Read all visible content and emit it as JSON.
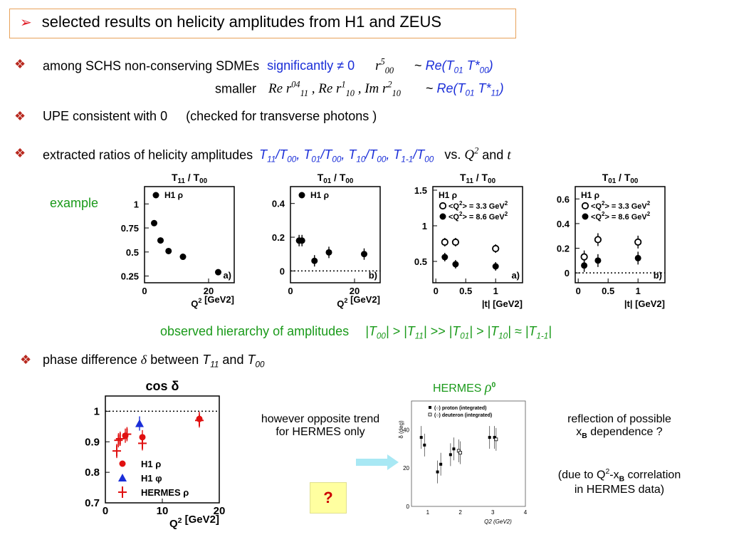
{
  "title": {
    "arrow": "➢",
    "text": "selected results on helicity amplitudes from H1 and ZEUS"
  },
  "bullets": {
    "b1": {
      "text_a": "among SCHS non-conserving SDMEs",
      "text_b": "significantly ≠ 0",
      "r_main": "r",
      "r_sup": "5",
      "r_sub": "00",
      "tilde": "~",
      "re_label": "Re(T",
      "t01": "01",
      "tstar": " T*",
      "t00": "00",
      "close": ")"
    },
    "b1b": {
      "smaller": "smaller",
      "re1": "Re r",
      "re1_sup": "04",
      "re1_sub": "11",
      "sep1": ",",
      "re2": "Re r",
      "re2_sup": "1",
      "re2_sub": "10",
      "sep2": ",",
      "im": "Im r",
      "im_sup": "2",
      "im_sub": "10",
      "tilde": "~",
      "re_label": "Re(T",
      "t01": "01",
      "tstar": " T*",
      "t11": "11",
      "close": ")"
    },
    "b2": {
      "text": "UPE consistent with 0",
      "paren": "(checked for transverse photons )"
    },
    "b3": {
      "text": "extracted ratios of helicity amplitudes",
      "vs": "vs.",
      "q": "Q",
      "q_sup": "2",
      "and": "and",
      "t": "t"
    },
    "b4": {
      "text": "phase  difference",
      "delta": "δ",
      "between": "between",
      "and": "and"
    },
    "bullet_symbol": "❖"
  },
  "example_label": "example",
  "hierarchy": {
    "label": "observed hierarchy of amplitudes",
    "expr": "|T00| > |T11| >> |T01| > |T10| ≈ |T1-1|"
  },
  "notes": {
    "trend_1": "however opposite trend",
    "trend_2": "for HERMES only",
    "refl_1": "reflection of possible",
    "refl_2": "x",
    "refl_2_sub": "B",
    "refl_2_b": " dependence  ?",
    "due_1": "(due to Q",
    "due_1_sup": "2",
    "due_1_b": "-x",
    "due_1_sub": "B",
    "due_1_c": " correlation",
    "due_2": "in  HERMES data)",
    "question": "?"
  },
  "hermes_label": {
    "text": "HERMES",
    "rho": "ρ",
    "rho_sup": "0"
  },
  "colors": {
    "title_border": "#e8a25a",
    "bullet": "#b8281e",
    "blue": "#1a2ed8",
    "green": "#1a9a1a",
    "red": "#e01010",
    "arrow_fill": "#a8e8f4"
  },
  "chart_data": [
    {
      "type": "scatter",
      "title": "T11 / T00",
      "xlabel": "Q2 [GeV2]",
      "ylabel": "",
      "panel": "a)",
      "xlim": [
        0,
        28
      ],
      "ylim": [
        0.18,
        1.18
      ],
      "xticks": [
        0,
        20
      ],
      "yticks": [
        0.25,
        0.5,
        0.75,
        1
      ],
      "series": [
        {
          "name": "H1 ρ",
          "marker": "filled-circle",
          "points": [
            [
              3,
              0.8
            ],
            [
              5,
              0.62
            ],
            [
              7.5,
              0.51
            ],
            [
              12,
              0.45
            ],
            [
              23,
              0.29
            ]
          ]
        }
      ]
    },
    {
      "type": "scatter",
      "title": "T01 / T00",
      "xlabel": "Q2 [GeV2]",
      "ylabel": "",
      "panel": "b)",
      "xlim": [
        0,
        28
      ],
      "ylim": [
        -0.07,
        0.5
      ],
      "xticks": [
        0,
        20
      ],
      "yticks": [
        0,
        0.2,
        0.4
      ],
      "dotted_line": 0,
      "series": [
        {
          "name": "H1 ρ",
          "marker": "filled-circle",
          "points": [
            [
              2.7,
              0.18
            ],
            [
              3.6,
              0.18
            ],
            [
              7.5,
              0.06
            ],
            [
              12,
              0.11
            ],
            [
              23,
              0.1
            ]
          ]
        }
      ]
    },
    {
      "type": "scatter",
      "title": "T11 / T00",
      "xlabel": "|t| [GeV2]",
      "ylabel": "",
      "panel": "a)",
      "xlim": [
        -0.05,
        1.45
      ],
      "ylim": [
        0.2,
        1.55
      ],
      "xticks": [
        0,
        0.5,
        1
      ],
      "yticks": [
        0.5,
        1,
        1.5
      ],
      "series_header": "H1 ρ",
      "series": [
        {
          "name": "<Q2> = 3.3 GeV2",
          "marker": "open-circle",
          "points": [
            [
              0.15,
              0.77
            ],
            [
              0.33,
              0.77
            ],
            [
              1.0,
              0.68
            ]
          ]
        },
        {
          "name": "<Q2> = 8.6 GeV2",
          "marker": "filled-circle",
          "points": [
            [
              0.15,
              0.56
            ],
            [
              0.33,
              0.46
            ],
            [
              1.0,
              0.43
            ]
          ]
        }
      ]
    },
    {
      "type": "scatter",
      "title": "T01 / T00",
      "xlabel": "|t| [GeV2]",
      "ylabel": "",
      "panel": "b)",
      "xlim": [
        -0.05,
        1.45
      ],
      "ylim": [
        -0.08,
        0.7
      ],
      "xticks": [
        0,
        0.5,
        1
      ],
      "yticks": [
        0,
        0.2,
        0.4,
        0.6
      ],
      "dotted_line": 0,
      "series_header": "H1 ρ",
      "series": [
        {
          "name": "<Q2> = 3.3 GeV2",
          "marker": "open-circle",
          "points": [
            [
              0.1,
              0.13
            ],
            [
              0.33,
              0.27
            ],
            [
              1.0,
              0.25
            ]
          ]
        },
        {
          "name": "<Q2> = 8.6 GeV2",
          "marker": "filled-circle",
          "points": [
            [
              0.1,
              0.06
            ],
            [
              0.33,
              0.1
            ],
            [
              1.0,
              0.12
            ]
          ]
        }
      ]
    },
    {
      "type": "scatter",
      "title": "cos δ",
      "xlabel": "Q2 [GeV2]",
      "ylabel": "",
      "panel": "",
      "xlim": [
        0,
        20
      ],
      "ylim": [
        0.7,
        1.05
      ],
      "xticks": [
        0,
        10,
        20
      ],
      "yticks": [
        0.7,
        0.8,
        0.9,
        1
      ],
      "dotted_line": 1,
      "series": [
        {
          "name": "H1 ρ",
          "marker": "filled-circle",
          "color": "#e01010",
          "points": [
            [
              3.5,
              0.92
            ],
            [
              6.5,
              0.915
            ],
            [
              16.5,
              0.975
            ]
          ]
        },
        {
          "name": "H1 φ",
          "marker": "triangle",
          "color": "#1a2ed8",
          "points": [
            [
              6,
              0.96
            ]
          ]
        },
        {
          "name": "HERMES ρ",
          "marker": "cross",
          "color": "#e01010",
          "points": [
            [
              2.0,
              0.87
            ],
            [
              2.3,
              0.905
            ],
            [
              2.6,
              0.91
            ],
            [
              3.8,
              0.925
            ],
            [
              6.5,
              0.895
            ],
            [
              16.5,
              0.97
            ]
          ]
        }
      ]
    },
    {
      "type": "scatter",
      "title": "",
      "xlabel": "Q2 (GeV2)",
      "ylabel": "δ (deg)",
      "panel": "",
      "xlim": [
        0.5,
        4
      ],
      "ylim": [
        0,
        55
      ],
      "xticks": [
        1,
        2,
        3,
        4
      ],
      "yticks": [
        0,
        20,
        40
      ],
      "series": [
        {
          "name": "(○) proton (integrated)",
          "marker": "filled-square",
          "points": [
            [
              0.8,
              36
            ],
            [
              0.9,
              32
            ],
            [
              1.3,
              18
            ],
            [
              1.4,
              22
            ],
            [
              1.7,
              27
            ],
            [
              1.8,
              30
            ],
            [
              2.9,
              36
            ],
            [
              3.05,
              36
            ]
          ]
        },
        {
          "name": "(○) deuteron (integrated)",
          "marker": "open-square",
          "points": [
            [
              1.95,
              29
            ],
            [
              2.0,
              28
            ],
            [
              3.1,
              35
            ]
          ]
        }
      ]
    }
  ]
}
